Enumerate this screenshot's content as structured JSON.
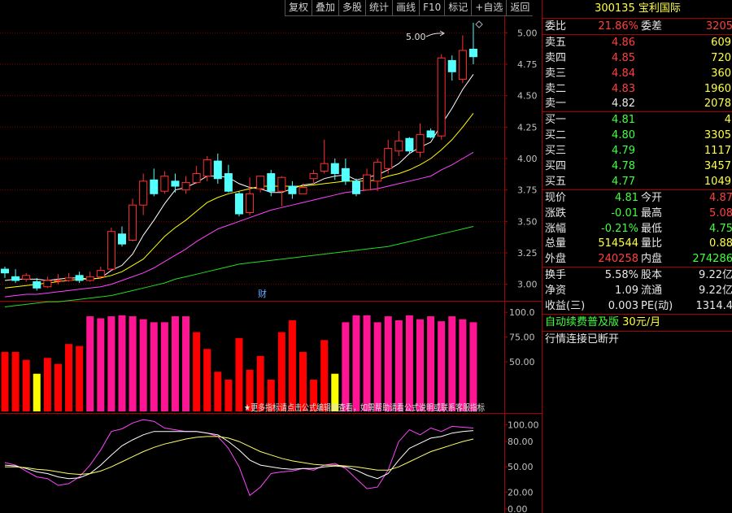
{
  "toolbar": [
    "复权",
    "叠加",
    "多股",
    "统计",
    "画线",
    "F10",
    "标记",
    "+自选",
    "返回"
  ],
  "stock": {
    "code": "300135",
    "name": "宝利国际"
  },
  "commission": {
    "ratio_label": "委比",
    "ratio": "21.86%",
    "diff_label": "委差",
    "diff": "3205"
  },
  "asks": [
    {
      "label": "卖五",
      "price": "4.86",
      "vol": "609"
    },
    {
      "label": "卖四",
      "price": "4.85",
      "vol": "720"
    },
    {
      "label": "卖三",
      "price": "4.84",
      "vol": "360"
    },
    {
      "label": "卖二",
      "price": "4.83",
      "vol": "1960"
    },
    {
      "label": "卖一",
      "price": "4.82",
      "vol": "2078"
    }
  ],
  "bids": [
    {
      "label": "买一",
      "price": "4.81",
      "vol": "4"
    },
    {
      "label": "买二",
      "price": "4.80",
      "vol": "3305"
    },
    {
      "label": "买三",
      "price": "4.79",
      "vol": "1117"
    },
    {
      "label": "买四",
      "price": "4.78",
      "vol": "3457"
    },
    {
      "label": "买五",
      "price": "4.77",
      "vol": "1049"
    }
  ],
  "stats1": [
    {
      "l1": "现价",
      "v1": "4.81",
      "c1": "green",
      "l2": "今开",
      "v2": "4.87",
      "c2": "red"
    },
    {
      "l1": "涨跌",
      "v1": "-0.01",
      "c1": "green",
      "l2": "最高",
      "v2": "5.08",
      "c2": "red"
    },
    {
      "l1": "涨幅",
      "v1": "-0.21%",
      "c1": "green",
      "l2": "最低",
      "v2": "4.75",
      "c2": "green"
    },
    {
      "l1": "总量",
      "v1": "514544",
      "c1": "yellow",
      "l2": "量比",
      "v2": "0.88",
      "c2": "yellow"
    },
    {
      "l1": "外盘",
      "v1": "240258",
      "c1": "red",
      "l2": "内盘",
      "v2": "274286",
      "c2": "green"
    }
  ],
  "stats2": [
    {
      "l1": "换手",
      "v1": "5.58%",
      "l2": "股本",
      "v2": "9.22亿"
    },
    {
      "l1": "净资",
      "v1": "1.09",
      "l2": "流通",
      "v2": "9.22亿"
    },
    {
      "l1": "收益(三)",
      "v1": "0.003",
      "l2": "PE(动)",
      "v2": "1314.4"
    }
  ],
  "promo": {
    "text": "自动续费普及版",
    "price": "30元/月"
  },
  "status": "行情连接已断开",
  "main_chart": {
    "y_ticks": [
      "5.00",
      "4.75",
      "4.50",
      "4.25",
      "4.00",
      "3.75",
      "3.50",
      "3.25",
      "3.00"
    ],
    "high_label": "5.00",
    "marker_label": "财"
  },
  "ind_chart": {
    "y_ticks": [
      "100.0",
      "75.00",
      "50.00"
    ],
    "scroll_text": "★更多指标请点击公式编辑器查看，如需帮助请看公式说明或联系客服指标"
  },
  "kdj_chart": {
    "y_ticks": [
      "100.00",
      "80.00",
      "50.00",
      "20.00",
      "0.00"
    ]
  },
  "chart_data": [
    {
      "type": "candlestick",
      "ylim": [
        2.92,
        5.08
      ],
      "candles": [
        [
          3.12,
          3.09,
          3.14,
          3.05
        ],
        [
          3.06,
          3.03,
          3.12,
          3.01
        ],
        [
          3.04,
          3.07,
          3.09,
          3.02
        ],
        [
          3.02,
          2.97,
          3.05,
          2.95
        ],
        [
          2.98,
          3.03,
          3.06,
          2.97
        ],
        [
          3.03,
          3.03,
          3.08,
          3.0
        ],
        [
          3.03,
          3.05,
          3.09,
          3.02
        ],
        [
          3.07,
          3.03,
          3.1,
          3.01
        ],
        [
          3.03,
          3.06,
          3.1,
          3.02
        ],
        [
          3.06,
          3.11,
          3.14,
          3.04
        ],
        [
          3.12,
          3.42,
          3.45,
          3.11
        ],
        [
          3.4,
          3.32,
          3.46,
          3.3
        ],
        [
          3.35,
          3.63,
          3.68,
          3.34
        ],
        [
          3.63,
          3.82,
          3.88,
          3.55
        ],
        [
          3.83,
          3.72,
          3.92,
          3.7
        ],
        [
          3.74,
          3.86,
          3.9,
          3.72
        ],
        [
          3.82,
          3.78,
          3.88,
          3.73
        ],
        [
          3.75,
          3.81,
          3.86,
          3.72
        ],
        [
          3.81,
          3.88,
          3.94,
          3.8
        ],
        [
          3.86,
          3.99,
          4.02,
          3.82
        ],
        [
          3.98,
          3.84,
          4.04,
          3.8
        ],
        [
          3.88,
          3.74,
          3.95,
          3.73
        ],
        [
          3.72,
          3.56,
          3.74,
          3.54
        ],
        [
          3.57,
          3.72,
          3.85,
          3.55
        ],
        [
          3.76,
          3.86,
          3.86,
          3.73
        ],
        [
          3.88,
          3.74,
          3.91,
          3.7
        ],
        [
          3.74,
          3.85,
          3.86,
          3.62
        ],
        [
          3.78,
          3.72,
          3.82,
          3.68
        ],
        [
          3.72,
          3.77,
          3.8,
          3.72
        ],
        [
          3.84,
          3.88,
          3.91,
          3.8
        ],
        [
          3.9,
          3.96,
          4.15,
          3.88
        ],
        [
          3.96,
          3.88,
          4.0,
          3.83
        ],
        [
          3.92,
          3.82,
          4.0,
          3.79
        ],
        [
          3.82,
          3.72,
          3.84,
          3.7
        ],
        [
          3.75,
          3.87,
          3.92,
          3.75
        ],
        [
          3.82,
          3.97,
          4.0,
          3.74
        ],
        [
          3.92,
          4.08,
          4.15,
          3.88
        ],
        [
          4.06,
          4.14,
          4.22,
          4.02
        ],
        [
          4.16,
          4.06,
          4.17,
          4.04
        ],
        [
          4.05,
          4.19,
          4.28,
          4.01
        ],
        [
          4.22,
          4.17,
          4.24,
          4.16
        ],
        [
          4.18,
          4.8,
          4.83,
          4.15
        ],
        [
          4.78,
          4.69,
          4.82,
          4.62
        ],
        [
          4.63,
          4.86,
          4.98,
          4.6
        ],
        [
          4.87,
          4.81,
          5.08,
          4.75
        ]
      ],
      "ma": [
        {
          "color": "#ffffff",
          "values": [
            3.03,
            3.04,
            3.04,
            3.04,
            3.03,
            3.04,
            3.05,
            3.05,
            3.04,
            3.05,
            3.11,
            3.15,
            3.24,
            3.39,
            3.51,
            3.64,
            3.75,
            3.77,
            3.81,
            3.86,
            3.86,
            3.85,
            3.8,
            3.77,
            3.76,
            3.73,
            3.73,
            3.76,
            3.79,
            3.8,
            3.84,
            3.86,
            3.87,
            3.83,
            3.85,
            3.87,
            3.91,
            3.96,
            4.04,
            4.09,
            4.13,
            4.27,
            4.4,
            4.55,
            4.67
          ]
        },
        {
          "color": "#ffff00",
          "values": [
            2.97,
            2.98,
            2.99,
            3.0,
            3.01,
            3.02,
            3.03,
            3.04,
            3.04,
            3.05,
            3.07,
            3.1,
            3.15,
            3.2,
            3.29,
            3.38,
            3.45,
            3.51,
            3.58,
            3.65,
            3.69,
            3.72,
            3.74,
            3.76,
            3.78,
            3.78,
            3.78,
            3.78,
            3.78,
            3.79,
            3.8,
            3.81,
            3.82,
            3.82,
            3.82,
            3.83,
            3.86,
            3.88,
            3.91,
            3.95,
            4.0,
            4.07,
            4.15,
            4.25,
            4.36
          ]
        },
        {
          "color": "#ff44ff",
          "values": [
            2.9,
            2.91,
            2.92,
            2.92,
            2.93,
            2.94,
            2.95,
            2.96,
            2.97,
            2.98,
            3.0,
            3.03,
            3.06,
            3.09,
            3.13,
            3.18,
            3.23,
            3.28,
            3.34,
            3.39,
            3.44,
            3.47,
            3.5,
            3.53,
            3.56,
            3.59,
            3.61,
            3.63,
            3.65,
            3.67,
            3.69,
            3.71,
            3.73,
            3.74,
            3.75,
            3.76,
            3.78,
            3.8,
            3.82,
            3.84,
            3.86,
            3.91,
            3.95,
            4.0,
            4.05
          ]
        },
        {
          "color": "#22dd22",
          "values": [
            2.82,
            2.83,
            2.84,
            2.85,
            2.86,
            2.86,
            2.87,
            2.88,
            2.89,
            2.9,
            2.91,
            2.93,
            2.95,
            2.97,
            2.99,
            3.01,
            3.04,
            3.06,
            3.08,
            3.1,
            3.12,
            3.14,
            3.16,
            3.17,
            3.18,
            3.19,
            3.2,
            3.21,
            3.22,
            3.23,
            3.24,
            3.25,
            3.26,
            3.27,
            3.28,
            3.29,
            3.3,
            3.32,
            3.34,
            3.36,
            3.38,
            3.4,
            3.42,
            3.44,
            3.46
          ]
        }
      ]
    },
    {
      "type": "bar",
      "ylim": [
        0,
        110
      ],
      "values": [
        60,
        60,
        52,
        38,
        54,
        48,
        68,
        66,
        96,
        94,
        96,
        97,
        96,
        93,
        90,
        90,
        96,
        96,
        80,
        63,
        40,
        32,
        74,
        42,
        56,
        32,
        80,
        92,
        60,
        32,
        72,
        38,
        90,
        97,
        97,
        90,
        96,
        92,
        97,
        93,
        96,
        91,
        96,
        93,
        90
      ],
      "colors": [
        "red",
        "red",
        "red",
        "yellow",
        "red",
        "red",
        "red",
        "red",
        "magenta",
        "magenta",
        "magenta",
        "magenta",
        "magenta",
        "magenta",
        "magenta",
        "magenta",
        "magenta",
        "magenta",
        "red",
        "red",
        "red",
        "red",
        "red",
        "red",
        "red",
        "red",
        "red",
        "red",
        "red",
        "red",
        "red",
        "yellow",
        "magenta",
        "magenta",
        "magenta",
        "magenta",
        "magenta",
        "magenta",
        "magenta",
        "magenta",
        "magenta",
        "magenta",
        "magenta",
        "magenta",
        "magenta"
      ]
    },
    {
      "type": "line",
      "ylim": [
        0,
        110
      ],
      "series": [
        {
          "color": "#ff44ff",
          "values": [
            55,
            52,
            45,
            38,
            36,
            28,
            30,
            38,
            52,
            70,
            92,
            95,
            102,
            106,
            104,
            96,
            94,
            92,
            92,
            90,
            86,
            72,
            50,
            16,
            26,
            42,
            44,
            45,
            48,
            46,
            52,
            54,
            48,
            36,
            24,
            26,
            46,
            80,
            94,
            88,
            96,
            92,
            98,
            97,
            96
          ]
        },
        {
          "color": "#ffffff",
          "values": [
            52,
            51,
            48,
            44,
            42,
            38,
            36,
            37,
            42,
            52,
            64,
            75,
            82,
            88,
            92,
            92,
            92,
            92,
            92,
            90,
            88,
            80,
            70,
            58,
            52,
            50,
            48,
            47,
            48,
            48,
            50,
            51,
            50,
            46,
            40,
            36,
            42,
            58,
            72,
            78,
            84,
            86,
            90,
            92,
            93
          ]
        },
        {
          "color": "#ffff66",
          "values": [
            50,
            50,
            49,
            47,
            46,
            44,
            42,
            41,
            42,
            45,
            50,
            56,
            62,
            68,
            73,
            77,
            80,
            83,
            85,
            86,
            86,
            84,
            80,
            74,
            68,
            64,
            60,
            57,
            55,
            53,
            52,
            52,
            51,
            50,
            48,
            46,
            46,
            50,
            56,
            62,
            68,
            72,
            76,
            80,
            83
          ]
        }
      ]
    }
  ]
}
